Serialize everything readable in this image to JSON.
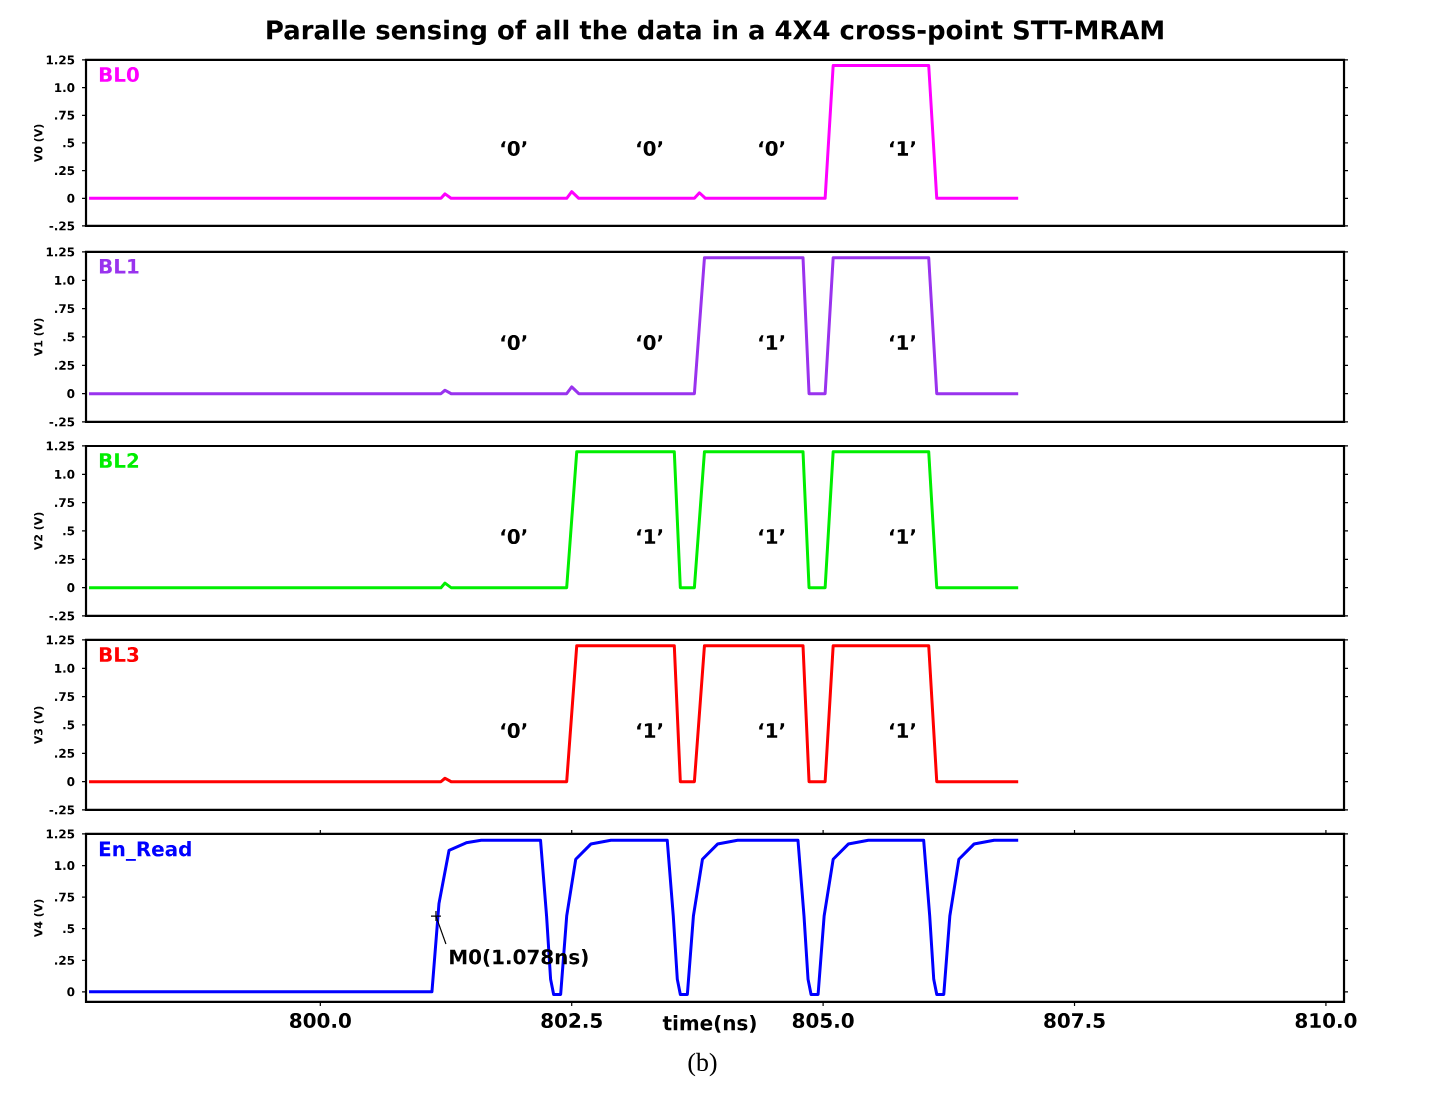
{
  "chart_data": [
    {
      "type": "line",
      "title": "Paralle sensing of all the data in a 4X4 cross-point STT-MRAM",
      "ylabel": "V0 (V)",
      "xlim": [
        797.67,
        810.18
      ],
      "ylim": [
        -0.25,
        1.25
      ],
      "yticks": [
        {
          "value": -0.25,
          "label": "-.25"
        },
        0,
        {
          "value": 0.25,
          "label": ".25"
        },
        {
          "value": 0.5,
          "label": ".5"
        },
        {
          "value": 0.75,
          "label": ".75"
        },
        {
          "value": 1.0,
          "label": "1.0"
        },
        {
          "value": 1.25,
          "label": "1.25"
        }
      ],
      "tick_labels": "y",
      "grid": false,
      "series": [
        {
          "name": "BL0",
          "color": "#ff00ff",
          "x": [
            797.7,
            801.2,
            801.24,
            801.3,
            802.45,
            802.5,
            802.57,
            803.72,
            803.77,
            803.83,
            805.02,
            805.1,
            806.05,
            806.13,
            806.94
          ],
          "values": [
            0,
            0,
            0.04,
            0,
            0,
            0.06,
            0,
            0,
            0.05,
            0,
            0,
            1.2,
            1.2,
            0,
            0
          ]
        }
      ],
      "annotations": [
        "‘0’",
        "‘0’",
        "‘0’",
        "‘1’"
      ]
    },
    {
      "type": "line",
      "ylabel": "V1 (V)",
      "xlim": [
        797.67,
        810.18
      ],
      "ylim": [
        -0.25,
        1.25
      ],
      "yticks": [
        {
          "value": -0.25,
          "label": "-.25"
        },
        0,
        {
          "value": 0.25,
          "label": ".25"
        },
        {
          "value": 0.5,
          "label": ".5"
        },
        {
          "value": 0.75,
          "label": ".75"
        },
        {
          "value": 1.0,
          "label": "1.0"
        },
        {
          "value": 1.25,
          "label": "1.25"
        }
      ],
      "tick_labels": "y",
      "grid": false,
      "series": [
        {
          "name": "BL1",
          "color": "#9933ee",
          "x": [
            797.7,
            801.2,
            801.24,
            801.3,
            802.45,
            802.5,
            802.57,
            803.72,
            803.82,
            804.8,
            804.86,
            805.02,
            805.1,
            806.05,
            806.13,
            806.94
          ],
          "values": [
            0,
            0,
            0.03,
            0,
            0,
            0.06,
            0,
            0,
            1.2,
            1.2,
            0,
            0,
            1.2,
            1.2,
            0,
            0
          ]
        }
      ],
      "annotations": [
        "‘0’",
        "‘0’",
        "‘1’",
        "‘1’"
      ]
    },
    {
      "type": "line",
      "ylabel": "V2 (V)",
      "xlim": [
        797.67,
        810.18
      ],
      "ylim": [
        -0.25,
        1.25
      ],
      "yticks": [
        {
          "value": -0.25,
          "label": "-.25"
        },
        0,
        {
          "value": 0.25,
          "label": ".25"
        },
        {
          "value": 0.5,
          "label": ".5"
        },
        {
          "value": 0.75,
          "label": ".75"
        },
        {
          "value": 1.0,
          "label": "1.0"
        },
        {
          "value": 1.25,
          "label": "1.25"
        }
      ],
      "tick_labels": "y",
      "grid": false,
      "series": [
        {
          "name": "BL2",
          "color": "#00ee00",
          "x": [
            797.7,
            801.2,
            801.24,
            801.3,
            802.45,
            802.55,
            803.52,
            803.58,
            803.72,
            803.82,
            804.8,
            804.86,
            805.02,
            805.1,
            806.05,
            806.13,
            806.94
          ],
          "values": [
            0,
            0,
            0.04,
            0,
            0,
            1.2,
            1.2,
            0,
            0,
            1.2,
            1.2,
            0,
            0,
            1.2,
            1.2,
            0,
            0
          ]
        }
      ],
      "annotations": [
        "‘0’",
        "‘1’",
        "‘1’",
        "‘1’"
      ]
    },
    {
      "type": "line",
      "ylabel": "V3 (V)",
      "xlim": [
        797.67,
        810.18
      ],
      "ylim": [
        -0.25,
        1.25
      ],
      "yticks": [
        {
          "value": -0.25,
          "label": "-.25"
        },
        0,
        {
          "value": 0.25,
          "label": ".25"
        },
        {
          "value": 0.5,
          "label": ".5"
        },
        {
          "value": 0.75,
          "label": ".75"
        },
        {
          "value": 1.0,
          "label": "1.0"
        },
        {
          "value": 1.25,
          "label": "1.25"
        }
      ],
      "tick_labels": "y",
      "grid": false,
      "series": [
        {
          "name": "BL3",
          "color": "#ff0000",
          "x": [
            797.7,
            801.2,
            801.24,
            801.3,
            802.45,
            802.55,
            803.52,
            803.58,
            803.72,
            803.82,
            804.8,
            804.86,
            805.02,
            805.1,
            806.05,
            806.13,
            806.94
          ],
          "values": [
            0,
            0,
            0.03,
            0,
            0,
            1.2,
            1.2,
            0,
            0,
            1.2,
            1.2,
            0,
            0,
            1.2,
            1.2,
            0,
            0
          ]
        }
      ],
      "annotations": [
        "‘0’",
        "‘1’",
        "‘1’",
        "‘1’"
      ]
    },
    {
      "type": "line",
      "ylabel": "V4 (V)",
      "xlabel": "time(ns)",
      "xlim": [
        797.67,
        810.18
      ],
      "ylim": [
        -0.08,
        1.25
      ],
      "xticks": [
        {
          "value": 800,
          "label": "800.0"
        },
        {
          "value": 802.5,
          "label": "802.5"
        },
        {
          "value": 805,
          "label": "805.0"
        },
        {
          "value": 807.5,
          "label": "807.5"
        },
        {
          "value": 810,
          "label": "810.0"
        }
      ],
      "yticks": [
        0,
        {
          "value": 0.25,
          "label": ".25"
        },
        {
          "value": 0.5,
          "label": ".5"
        },
        {
          "value": 0.75,
          "label": ".75"
        },
        {
          "value": 1.0,
          "label": "1.0"
        },
        {
          "value": 1.25,
          "label": "1.25"
        }
      ],
      "grid": false,
      "series": [
        {
          "name": "En_Read",
          "color": "#0000ff",
          "x": [
            797.7,
            801.11,
            801.18,
            801.28,
            801.45,
            801.6,
            802.19,
            802.25,
            802.29,
            802.32,
            802.39,
            802.45,
            802.54,
            802.69,
            802.89,
            803.45,
            803.51,
            803.55,
            803.58,
            803.65,
            803.71,
            803.8,
            803.95,
            804.15,
            804.75,
            804.81,
            804.85,
            804.88,
            804.95,
            805.01,
            805.1,
            805.25,
            805.45,
            806.0,
            806.06,
            806.1,
            806.13,
            806.2,
            806.26,
            806.35,
            806.5,
            806.7,
            806.94
          ],
          "values": [
            0,
            0,
            0.7,
            1.12,
            1.18,
            1.2,
            1.2,
            0.6,
            0.1,
            -0.02,
            -0.02,
            0.6,
            1.05,
            1.17,
            1.2,
            1.2,
            0.6,
            0.1,
            -0.02,
            -0.02,
            0.6,
            1.05,
            1.17,
            1.2,
            1.2,
            0.6,
            0.1,
            -0.02,
            -0.02,
            0.6,
            1.05,
            1.17,
            1.2,
            1.2,
            0.6,
            0.1,
            -0.02,
            -0.02,
            0.6,
            1.05,
            1.17,
            1.2,
            1.2
          ]
        }
      ],
      "annotations": [
        {
          "text": "M0(1.078ns)",
          "x": 801.15,
          "y": 0.6
        },
        "(b)"
      ]
    }
  ]
}
